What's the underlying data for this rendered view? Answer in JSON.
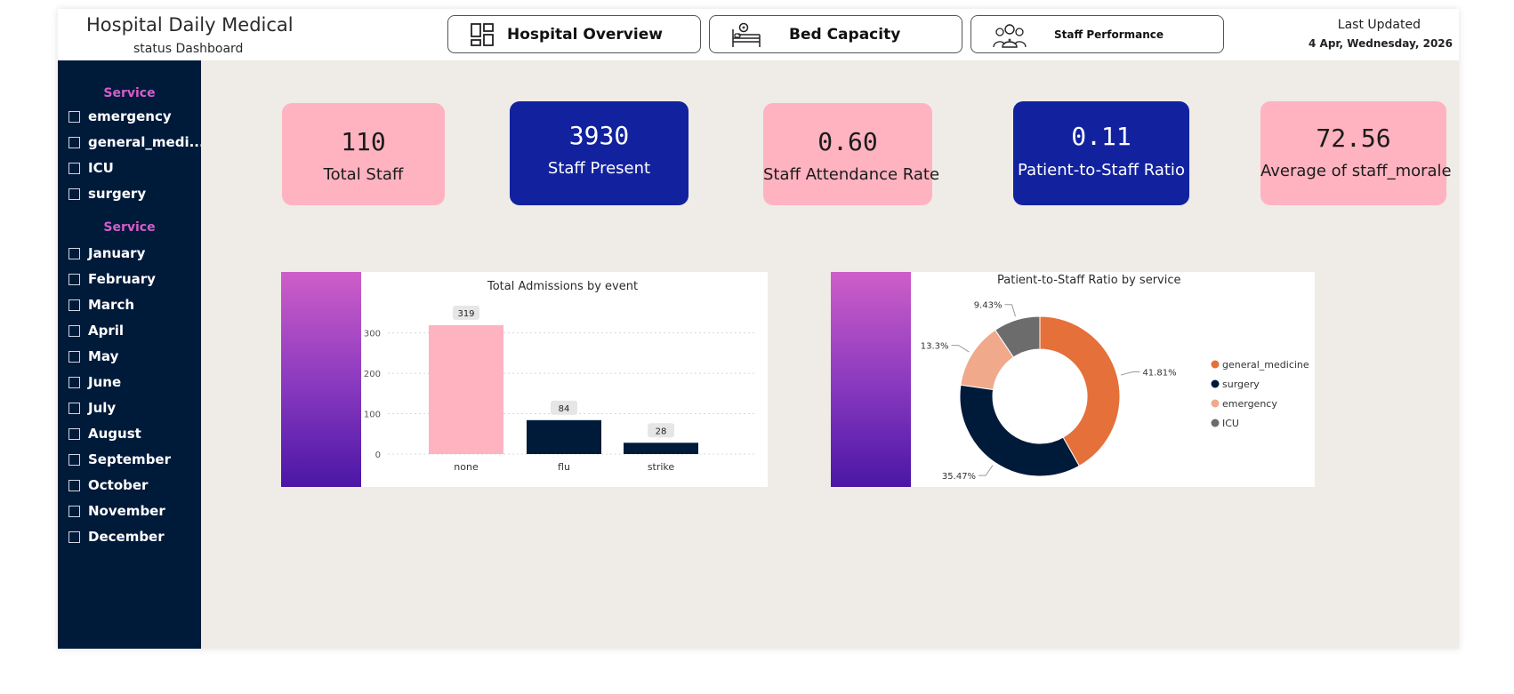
{
  "header": {
    "title_line1": "Hospital Daily Medical",
    "title_line2": "status Dashboard",
    "nav": [
      {
        "label": "Hospital Overview",
        "icon": "dashboard-icon"
      },
      {
        "label": "Bed Capacity",
        "icon": "hospital-bed-icon"
      },
      {
        "label": "Staff Performance",
        "icon": "staff-group-icon"
      }
    ],
    "last_updated_label": "Last Updated",
    "last_updated_date": "4 Apr, Wednesday, 2026"
  },
  "sidebar": {
    "service_heading": "Service",
    "services": [
      "emergency",
      "general_medi...",
      "ICU",
      "surgery"
    ],
    "month_heading": "Service",
    "months": [
      "January",
      "February",
      "March",
      "April",
      "May",
      "June",
      "July",
      "August",
      "September",
      "October",
      "November",
      "December"
    ]
  },
  "kpis": [
    {
      "value": "110",
      "label": "Total Staff",
      "style": "pink"
    },
    {
      "value": "3930",
      "label": "Staff Present",
      "style": "blue"
    },
    {
      "value": "0.60",
      "label": "Staff Attendance Rate",
      "style": "pink"
    },
    {
      "value": "0.11",
      "label": "Patient-to-Staff Ratio",
      "style": "blue"
    },
    {
      "value": "72.56",
      "label": "Average of staff_morale",
      "style": "pink"
    }
  ],
  "colors": {
    "pink": "#ffb3c0",
    "navy": "#001a3a",
    "blue": "#12229f",
    "orange": "#e5703a",
    "peach": "#f0a98a",
    "gray": "#6c6c6c"
  },
  "chart_data": [
    {
      "type": "bar",
      "title": "Total Admissions by event",
      "categories": [
        "none",
        "flu",
        "strike"
      ],
      "values": [
        319,
        84,
        28
      ],
      "bar_colors": [
        "#ffb3c0",
        "#001a3a",
        "#001a3a"
      ],
      "yticks": [
        0,
        100,
        200,
        300
      ],
      "ylim": [
        0,
        330
      ],
      "grid": true
    },
    {
      "type": "pie",
      "title": "Patient-to-Staff Ratio by service",
      "labels": [
        "general_medicine",
        "surgery",
        "emergency",
        "ICU"
      ],
      "values": [
        41.81,
        35.47,
        13.3,
        9.43
      ],
      "value_labels": [
        "41.81%",
        "35.47%",
        "13.3%",
        "9.43%"
      ],
      "colors": [
        "#e5703a",
        "#001a3a",
        "#f0a98a",
        "#6c6c6c"
      ],
      "donut": true,
      "legend_position": "right"
    }
  ]
}
